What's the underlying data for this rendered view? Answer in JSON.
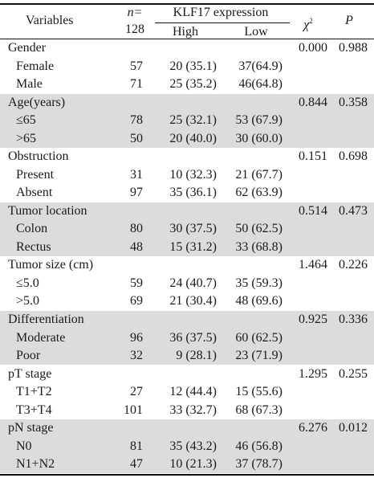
{
  "header": {
    "variables": "Variables",
    "n_label": "n=",
    "n_value": "128",
    "klf17": "KLF17 expression",
    "high": "High",
    "low": "Low",
    "chi": "χ",
    "chi_sup": "2",
    "p": "P"
  },
  "groups": [
    {
      "name": "Gender",
      "chi2": "0.000",
      "p": "0.988",
      "shaded": false,
      "rows": [
        {
          "label": "Female",
          "n": "57",
          "high": "20 (35.1)",
          "low": "37(64.9)"
        },
        {
          "label": "Male",
          "n": "71",
          "high": "25 (35.2)",
          "low": "46(64.8)"
        }
      ]
    },
    {
      "name": "Age(years)",
      "chi2": "0.844",
      "p": "0.358",
      "shaded": true,
      "rows": [
        {
          "label": "≤65",
          "n": "78",
          "high": "25 (32.1)",
          "low": "53 (67.9)"
        },
        {
          "label": ">65",
          "n": "50",
          "high": "20 (40.0)",
          "low": "30 (60.0)"
        }
      ]
    },
    {
      "name": "Obstruction",
      "chi2": "0.151",
      "p": "0.698",
      "shaded": false,
      "rows": [
        {
          "label": "Present",
          "n": "31",
          "high": "10 (32.3)",
          "low": "21 (67.7)"
        },
        {
          "label": "Absent",
          "n": "97",
          "high": "35 (36.1)",
          "low": "62 (63.9)"
        }
      ]
    },
    {
      "name": "Tumor location",
      "chi2": "0.514",
      "p": "0.473",
      "shaded": true,
      "rows": [
        {
          "label": "Colon",
          "n": "80",
          "high": "30 (37.5)",
          "low": "50 (62.5)"
        },
        {
          "label": "Rectus",
          "n": "48",
          "high": "15 (31.2)",
          "low": "33 (68.8)"
        }
      ]
    },
    {
      "name": "Tumor size (cm)",
      "chi2": "1.464",
      "p": "0.226",
      "shaded": false,
      "rows": [
        {
          "label": "≤5.0",
          "n": "59",
          "high": "24 (40.7)",
          "low": "35 (59.3)"
        },
        {
          "label": ">5.0",
          "n": "69",
          "high": "21 (30.4)",
          "low": "48 (69.6)"
        }
      ]
    },
    {
      "name": "Differentiation",
      "chi2": "0.925",
      "p": "0.336",
      "shaded": true,
      "rows": [
        {
          "label": "Moderate",
          "n": "96",
          "high": "36 (37.5)",
          "low": "60 (62.5)"
        },
        {
          "label": "Poor",
          "n": "32",
          "high": "9 (28.1)",
          "low": "23 (71.9)"
        }
      ]
    },
    {
      "name": "pT stage",
      "chi2": "1.295",
      "p": "0.255",
      "shaded": false,
      "rows": [
        {
          "label": "T1+T2",
          "n": "27",
          "high": "12 (44.4)",
          "low": "15 (55.6)"
        },
        {
          "label": "T3+T4",
          "n": "101",
          "high": "33 (32.7)",
          "low": "68 (67.3)"
        }
      ]
    },
    {
      "name": "pN stage",
      "chi2": "6.276",
      "p": "0.012",
      "shaded": true,
      "rows": [
        {
          "label": "N0",
          "n": "81",
          "high": "35 (43.2)",
          "low": "46 (56.8)"
        },
        {
          "label": "N1+N2",
          "n": "47",
          "high": "10 (21.3)",
          "low": "37 (78.7)"
        }
      ]
    }
  ],
  "colors": {
    "band": "#dcdcdc",
    "rule": "#111111"
  }
}
